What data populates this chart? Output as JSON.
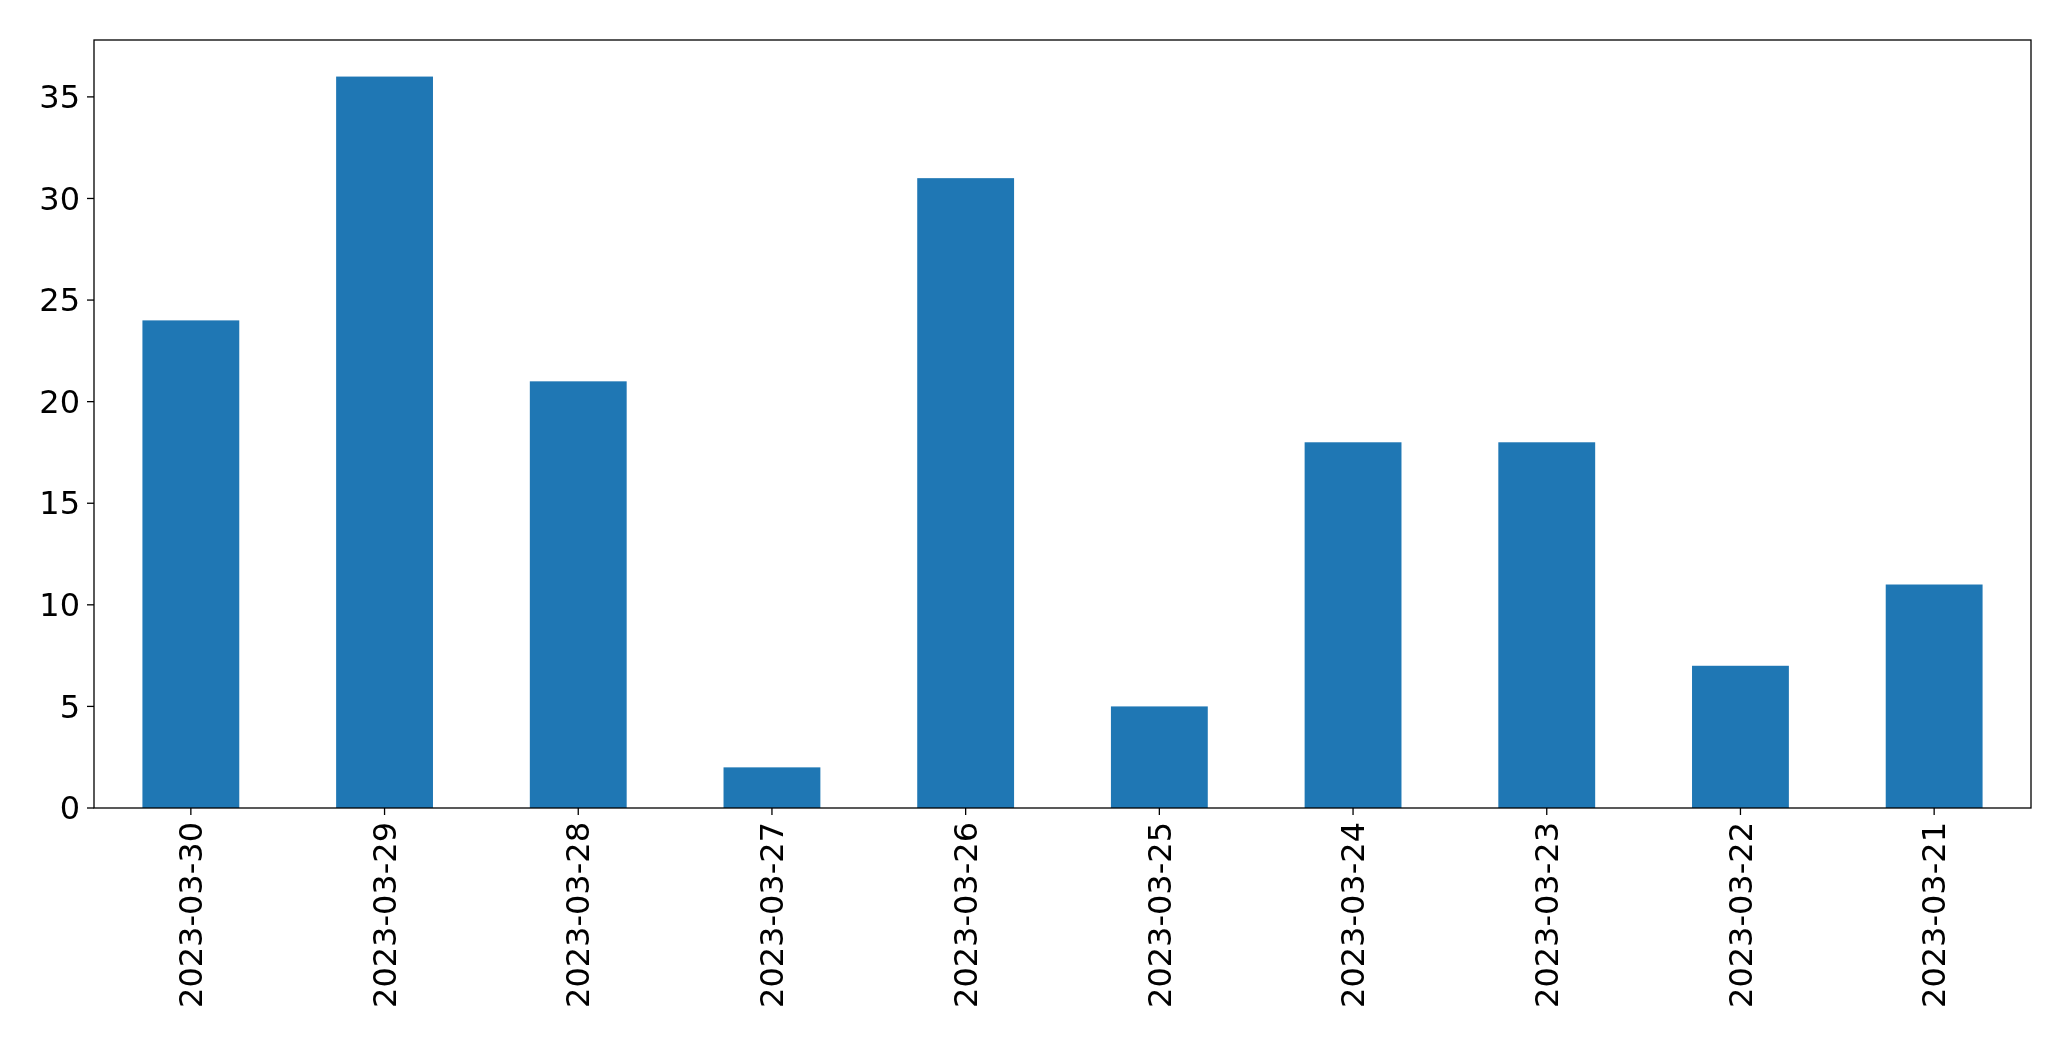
{
  "chart_data": {
    "type": "bar",
    "categories": [
      "2023-03-30",
      "2023-03-29",
      "2023-03-28",
      "2023-03-27",
      "2023-03-26",
      "2023-03-25",
      "2023-03-24",
      "2023-03-23",
      "2023-03-22",
      "2023-03-21"
    ],
    "values": [
      24,
      36,
      21,
      2,
      31,
      5,
      18,
      18,
      7,
      11
    ],
    "color": "#1f77b4",
    "ylim": [
      0,
      37.8
    ],
    "yticks": [
      0,
      5,
      10,
      15,
      20,
      25,
      30,
      35
    ]
  }
}
